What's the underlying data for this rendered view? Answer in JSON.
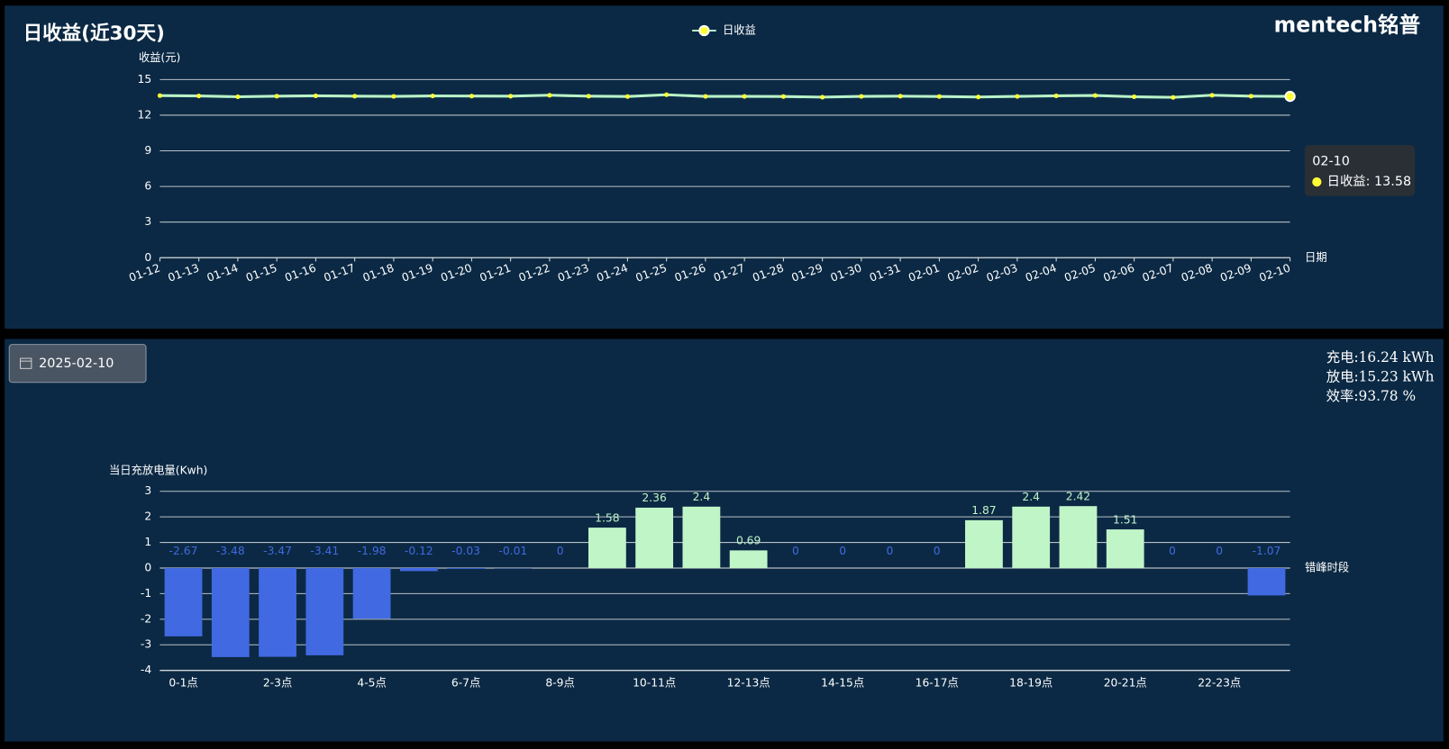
{
  "header": {
    "title": "日收益(近30天)",
    "logo": "mentech铭普"
  },
  "chart_data": [
    {
      "type": "line",
      "legend": "top",
      "y_label": "收益(元)",
      "x_label": "日期",
      "categories": [
        "01-12",
        "01-13",
        "01-14",
        "01-15",
        "01-16",
        "01-17",
        "01-18",
        "01-19",
        "01-20",
        "01-21",
        "01-22",
        "01-23",
        "01-24",
        "01-25",
        "01-26",
        "01-27",
        "01-28",
        "01-29",
        "01-30",
        "01-31",
        "02-01",
        "02-02",
        "02-03",
        "02-04",
        "02-05",
        "02-06",
        "02-07",
        "02-08",
        "02-09",
        "02-10"
      ],
      "series": [
        {
          "name": "日收益",
          "color": "#b8f2c8",
          "marker_color": "#ffff33",
          "values": [
            13.65,
            13.62,
            13.55,
            13.6,
            13.63,
            13.6,
            13.58,
            13.62,
            13.61,
            13.6,
            13.68,
            13.6,
            13.57,
            13.72,
            13.58,
            13.58,
            13.57,
            13.52,
            13.58,
            13.6,
            13.57,
            13.53,
            13.58,
            13.63,
            13.66,
            13.55,
            13.5,
            13.68,
            13.6,
            13.58
          ]
        }
      ],
      "ylim": [
        0,
        15
      ],
      "yticks": [
        0,
        3,
        6,
        9,
        12,
        15
      ],
      "grid": true
    },
    {
      "type": "bar",
      "y_label": "当日充放电量(Kwh)",
      "x_label": "错峰时段",
      "categories": [
        "0-1点",
        null,
        "2-3点",
        null,
        "4-5点",
        null,
        "6-7点",
        null,
        "8-9点",
        null,
        "10-11点",
        null,
        "12-13点",
        null,
        "14-15点",
        null,
        "16-17点",
        null,
        "18-19点",
        null,
        "20-21点",
        null,
        "22-23点",
        null
      ],
      "values": [
        -2.67,
        -3.48,
        -3.47,
        -3.41,
        -1.98,
        -0.12,
        -0.03,
        -0.01,
        0,
        1.58,
        2.36,
        2.4,
        0.69,
        0,
        0,
        0,
        0,
        1.87,
        2.4,
        2.42,
        1.51,
        0,
        0,
        -1.07
      ],
      "positive_color": "#c0f5c8",
      "negative_color": "#4169e1",
      "ylim": [
        -4,
        3
      ],
      "yticks": [
        -4,
        -3,
        -2,
        -1,
        0,
        1,
        2,
        3
      ],
      "grid": true
    }
  ],
  "tooltip": {
    "title": "02-10",
    "text": "日收益: 13.58"
  },
  "date_picker": "2025-02-10",
  "stats": [
    "充电:16.24 kWh",
    "放电:15.23 kWh",
    "效率:93.78 %"
  ]
}
